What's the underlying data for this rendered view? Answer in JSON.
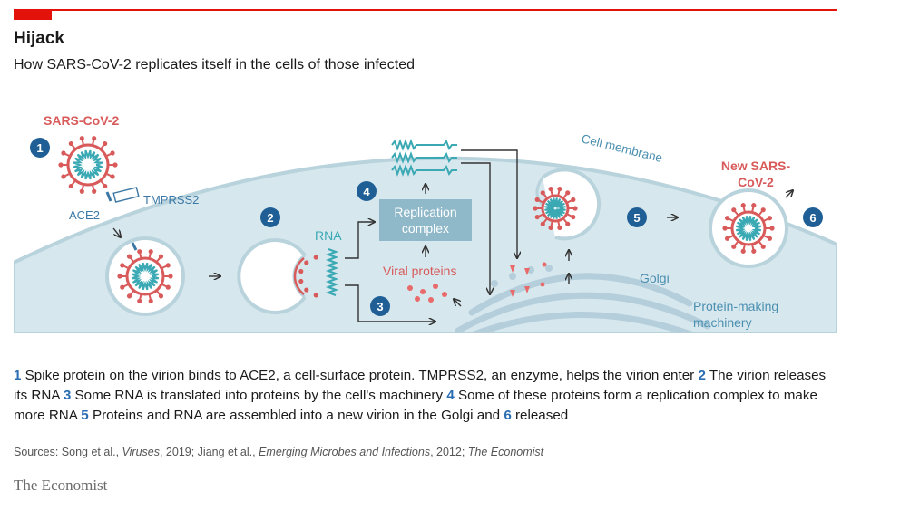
{
  "header": {
    "title": "Hijack",
    "subtitle": "How SARS-CoV-2 replicates itself in the cells of those infected"
  },
  "diagram": {
    "labels": {
      "virus": "SARS-CoV-2",
      "ace2": "ACE2",
      "tmprss2": "TMPRSS2",
      "cell_membrane": "Cell membrane",
      "rna": "RNA",
      "replication_line1": "Replication",
      "replication_line2": "complex",
      "viral_proteins": "Viral proteins",
      "golgi": "Golgi",
      "machinery_line1": "Protein-making",
      "machinery_line2": "machinery",
      "new_virus_line1": "New SARS-",
      "new_virus_line2": "CoV-2"
    },
    "steps": [
      "1",
      "2",
      "3",
      "4",
      "5",
      "6"
    ]
  },
  "caption": [
    {
      "num": "1",
      "text": " Spike protein on the virion binds to ACE2, a cell-surface protein. TMPRSS2, an enzyme, helps the virion enter "
    },
    {
      "num": "2",
      "text": " The virion releases its RNA "
    },
    {
      "num": "3",
      "text": " Some RNA is translated into proteins by the cell's machinery "
    },
    {
      "num": "4",
      "text": " Some of these proteins form a replication complex to make more RNA "
    },
    {
      "num": "5",
      "text": " Proteins and RNA are assembled into a new virion in the Golgi and "
    },
    {
      "num": "6",
      "text": " released"
    }
  ],
  "sources": {
    "prefix": "Sources: Song et al., ",
    "journal1": "Viruses",
    "mid1": ", 2019; Jiang et al., ",
    "journal2": "Emerging Microbes and Infections",
    "mid2": ", 2012; ",
    "journal3": "The Economist"
  },
  "brand": "The Economist",
  "colors": {
    "accent_red": "#e3120b",
    "cell_fill": "#d6e7ee",
    "membrane": "#b9d3dd",
    "step_badge": "#1f5f95",
    "virus_red": "#d85a5a",
    "rna_teal": "#3aa9b4",
    "replication_box": "#8fb8c9"
  }
}
